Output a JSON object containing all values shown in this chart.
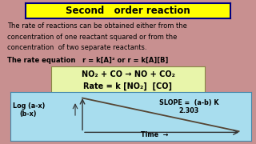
{
  "title": "Second   order reaction",
  "title_bg": "#FFFF00",
  "title_border": "#000080",
  "title_color": "#000000",
  "outer_bg": "#C8909090",
  "text_bg": "#DDD0E8",
  "equation_bg": "#E8F5AA",
  "graph_bg": "#A8DDEE",
  "body_text": [
    "The rate of reactions can be obtained either from the",
    "concentration of one reactant squared or from the",
    "concentration  of two separate reactants.",
    "The rate equation   r = k[A]² or r = k[A][B]"
  ],
  "body_bold_idx": 3,
  "equation_line1": "NO₂ + CO → NO + CO₂",
  "equation_line2": "Rate = k [NO₂]  [CO]",
  "slope_text_line1": "SLOPE =  (a-b) K",
  "slope_text_line2": "2.303",
  "ylabel_line1": "Log (a-x)",
  "ylabel_line2": "(b-x)",
  "xlabel": "Time",
  "outer_bg_color": "#C89090",
  "body_fontsize": 6.0,
  "eq_fontsize": 7.0,
  "title_fontsize": 8.5,
  "graph_fontsize": 5.8
}
